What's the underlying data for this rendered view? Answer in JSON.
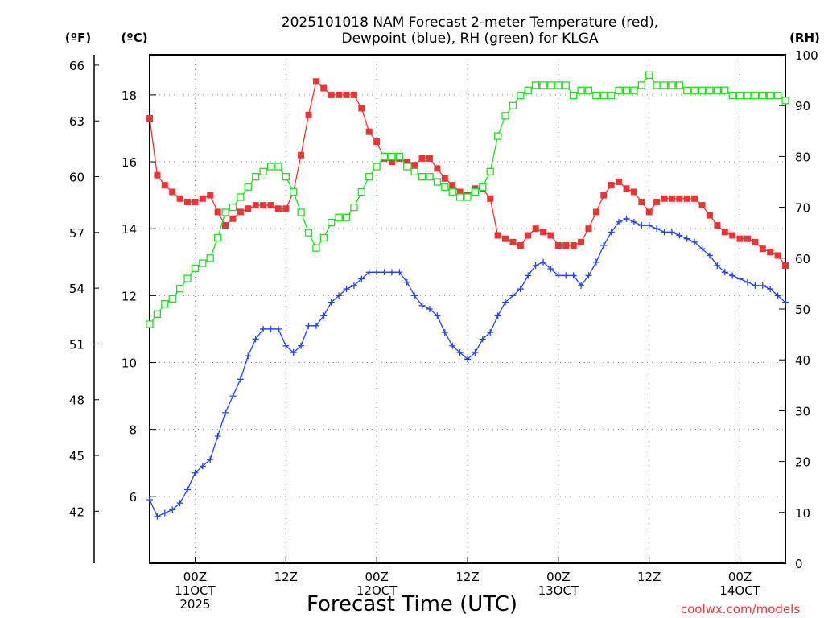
{
  "colors": {
    "temperature": "#ee3333",
    "dewpoint": "#2244ee",
    "rh": "#22dd22",
    "grid": "#888888"
  },
  "chart_data": {
    "type": "line",
    "title_line1": "2025101018 NAM Forecast 2-meter Temperature (red),",
    "title_line2": "Dewpoint (blue), RH (green) for KLGA",
    "xlabel": "Forecast Time (UTC)",
    "credit": "coolwx.com/models",
    "units": {
      "fahrenheit": "(ºF)",
      "celsius": "(ºC)",
      "rh": "(RH)"
    },
    "x_unit": "hours since 2025-10-10 18Z",
    "xlim": [
      0,
      84
    ],
    "ylim_c": [
      4.0,
      19.2
    ],
    "ylim_rh": [
      0,
      100
    ],
    "x_ticks": [
      {
        "x": 6,
        "lines": [
          "00Z",
          "11OCT",
          "2025"
        ]
      },
      {
        "x": 18,
        "lines": [
          "12Z",
          "",
          ""
        ]
      },
      {
        "x": 30,
        "lines": [
          "00Z",
          "12OCT",
          ""
        ]
      },
      {
        "x": 42,
        "lines": [
          "12Z",
          "",
          ""
        ]
      },
      {
        "x": 54,
        "lines": [
          "00Z",
          "13OCT",
          ""
        ]
      },
      {
        "x": 66,
        "lines": [
          "12Z",
          "",
          ""
        ]
      },
      {
        "x": 78,
        "lines": [
          "00Z",
          "14OCT",
          ""
        ]
      }
    ],
    "c_ticks": [
      6,
      8,
      10,
      12,
      14,
      16,
      18
    ],
    "f_ticks": [
      42,
      45,
      48,
      51,
      54,
      57,
      60,
      63,
      66
    ],
    "rh_ticks": [
      0,
      10,
      20,
      30,
      40,
      50,
      60,
      70,
      80,
      90,
      100
    ],
    "series": [
      {
        "name": "Temperature",
        "axis": "c",
        "marker": "filled-square",
        "color_key": "temperature",
        "values": [
          [
            0,
            17.3
          ],
          [
            1,
            15.6
          ],
          [
            2,
            15.3
          ],
          [
            3,
            15.1
          ],
          [
            4,
            14.9
          ],
          [
            5,
            14.8
          ],
          [
            6,
            14.8
          ],
          [
            7,
            14.9
          ],
          [
            8,
            15.0
          ],
          [
            9,
            14.5
          ],
          [
            10,
            14.1
          ],
          [
            11,
            14.3
          ],
          [
            12,
            14.5
          ],
          [
            13,
            14.6
          ],
          [
            14,
            14.7
          ],
          [
            15,
            14.7
          ],
          [
            16,
            14.7
          ],
          [
            17,
            14.6
          ],
          [
            18,
            14.6
          ],
          [
            19,
            15.1
          ],
          [
            20,
            16.2
          ],
          [
            21,
            17.4
          ],
          [
            22,
            18.4
          ],
          [
            23,
            18.2
          ],
          [
            24,
            18.0
          ],
          [
            25,
            18.0
          ],
          [
            26,
            18.0
          ],
          [
            27,
            18.0
          ],
          [
            28,
            17.6
          ],
          [
            29,
            16.9
          ],
          [
            30,
            16.6
          ],
          [
            31,
            16.1
          ],
          [
            32,
            16.0
          ],
          [
            33,
            16.1
          ],
          [
            34,
            16.0
          ],
          [
            35,
            15.9
          ],
          [
            36,
            16.1
          ],
          [
            37,
            16.1
          ],
          [
            38,
            15.8
          ],
          [
            39,
            15.5
          ],
          [
            40,
            15.3
          ],
          [
            41,
            15.1
          ],
          [
            42,
            15.0
          ],
          [
            43,
            15.2
          ],
          [
            44,
            15.2
          ],
          [
            45,
            14.9
          ],
          [
            46,
            13.8
          ],
          [
            47,
            13.7
          ],
          [
            48,
            13.6
          ],
          [
            49,
            13.5
          ],
          [
            50,
            13.8
          ],
          [
            51,
            14.0
          ],
          [
            52,
            13.9
          ],
          [
            53,
            13.8
          ],
          [
            54,
            13.5
          ],
          [
            55,
            13.5
          ],
          [
            56,
            13.5
          ],
          [
            57,
            13.6
          ],
          [
            58,
            14.0
          ],
          [
            59,
            14.5
          ],
          [
            60,
            15.0
          ],
          [
            61,
            15.3
          ],
          [
            62,
            15.4
          ],
          [
            63,
            15.2
          ],
          [
            64,
            15.1
          ],
          [
            65,
            14.8
          ],
          [
            66,
            14.5
          ],
          [
            67,
            14.8
          ],
          [
            68,
            14.9
          ],
          [
            69,
            14.9
          ],
          [
            70,
            14.9
          ],
          [
            71,
            14.9
          ],
          [
            72,
            14.9
          ],
          [
            73,
            14.7
          ],
          [
            74,
            14.4
          ],
          [
            75,
            14.1
          ],
          [
            76,
            13.9
          ],
          [
            77,
            13.8
          ],
          [
            78,
            13.7
          ],
          [
            79,
            13.7
          ],
          [
            80,
            13.6
          ],
          [
            81,
            13.4
          ],
          [
            82,
            13.3
          ],
          [
            83,
            13.2
          ],
          [
            84,
            12.9
          ]
        ]
      },
      {
        "name": "Dewpoint",
        "axis": "c",
        "marker": "plus",
        "color_key": "dewpoint",
        "values": [
          [
            0,
            5.9
          ],
          [
            1,
            5.4
          ],
          [
            2,
            5.5
          ],
          [
            3,
            5.6
          ],
          [
            4,
            5.8
          ],
          [
            5,
            6.2
          ],
          [
            6,
            6.7
          ],
          [
            7,
            6.9
          ],
          [
            8,
            7.1
          ],
          [
            9,
            7.8
          ],
          [
            10,
            8.5
          ],
          [
            11,
            9.0
          ],
          [
            12,
            9.5
          ],
          [
            13,
            10.2
          ],
          [
            14,
            10.7
          ],
          [
            15,
            11.0
          ],
          [
            16,
            11.0
          ],
          [
            17,
            11.0
          ],
          [
            18,
            10.5
          ],
          [
            19,
            10.3
          ],
          [
            20,
            10.5
          ],
          [
            21,
            11.1
          ],
          [
            22,
            11.1
          ],
          [
            23,
            11.4
          ],
          [
            24,
            11.8
          ],
          [
            25,
            12.0
          ],
          [
            26,
            12.2
          ],
          [
            27,
            12.3
          ],
          [
            28,
            12.5
          ],
          [
            29,
            12.7
          ],
          [
            30,
            12.7
          ],
          [
            31,
            12.7
          ],
          [
            32,
            12.7
          ],
          [
            33,
            12.7
          ],
          [
            34,
            12.4
          ],
          [
            35,
            12.0
          ],
          [
            36,
            11.7
          ],
          [
            37,
            11.6
          ],
          [
            38,
            11.4
          ],
          [
            39,
            10.9
          ],
          [
            40,
            10.5
          ],
          [
            41,
            10.3
          ],
          [
            42,
            10.1
          ],
          [
            43,
            10.3
          ],
          [
            44,
            10.7
          ],
          [
            45,
            10.9
          ],
          [
            46,
            11.4
          ],
          [
            47,
            11.8
          ],
          [
            48,
            12.0
          ],
          [
            49,
            12.2
          ],
          [
            50,
            12.6
          ],
          [
            51,
            12.9
          ],
          [
            52,
            13.0
          ],
          [
            53,
            12.8
          ],
          [
            54,
            12.6
          ],
          [
            55,
            12.6
          ],
          [
            56,
            12.6
          ],
          [
            57,
            12.3
          ],
          [
            58,
            12.6
          ],
          [
            59,
            13.0
          ],
          [
            60,
            13.5
          ],
          [
            61,
            13.9
          ],
          [
            62,
            14.2
          ],
          [
            63,
            14.3
          ],
          [
            64,
            14.2
          ],
          [
            65,
            14.1
          ],
          [
            66,
            14.1
          ],
          [
            67,
            14.0
          ],
          [
            68,
            13.9
          ],
          [
            69,
            13.9
          ],
          [
            70,
            13.8
          ],
          [
            71,
            13.7
          ],
          [
            72,
            13.6
          ],
          [
            73,
            13.4
          ],
          [
            74,
            13.2
          ],
          [
            75,
            12.9
          ],
          [
            76,
            12.7
          ],
          [
            77,
            12.6
          ],
          [
            78,
            12.5
          ],
          [
            79,
            12.4
          ],
          [
            80,
            12.3
          ],
          [
            81,
            12.3
          ],
          [
            82,
            12.2
          ],
          [
            83,
            12.0
          ],
          [
            84,
            11.8
          ]
        ]
      },
      {
        "name": "RH",
        "axis": "rh",
        "marker": "open-square",
        "color_key": "rh",
        "values": [
          [
            0,
            47
          ],
          [
            1,
            49
          ],
          [
            2,
            51
          ],
          [
            3,
            52
          ],
          [
            4,
            54
          ],
          [
            5,
            56
          ],
          [
            6,
            58
          ],
          [
            7,
            59
          ],
          [
            8,
            60
          ],
          [
            9,
            64
          ],
          [
            10,
            69
          ],
          [
            11,
            70
          ],
          [
            12,
            72
          ],
          [
            13,
            74
          ],
          [
            14,
            76
          ],
          [
            15,
            77
          ],
          [
            16,
            78
          ],
          [
            17,
            78
          ],
          [
            18,
            76
          ],
          [
            19,
            73
          ],
          [
            20,
            69
          ],
          [
            21,
            65
          ],
          [
            22,
            62
          ],
          [
            23,
            64
          ],
          [
            24,
            67
          ],
          [
            25,
            68
          ],
          [
            26,
            68
          ],
          [
            27,
            70
          ],
          [
            28,
            73
          ],
          [
            29,
            76
          ],
          [
            30,
            78
          ],
          [
            31,
            80
          ],
          [
            32,
            80
          ],
          [
            33,
            80
          ],
          [
            34,
            78
          ],
          [
            35,
            77
          ],
          [
            36,
            76
          ],
          [
            37,
            76
          ],
          [
            38,
            75
          ],
          [
            39,
            74
          ],
          [
            40,
            73
          ],
          [
            41,
            72
          ],
          [
            42,
            72
          ],
          [
            43,
            73
          ],
          [
            44,
            74
          ],
          [
            45,
            77
          ],
          [
            46,
            84
          ],
          [
            47,
            88
          ],
          [
            48,
            90
          ],
          [
            49,
            92
          ],
          [
            50,
            93
          ],
          [
            51,
            94
          ],
          [
            52,
            94
          ],
          [
            53,
            94
          ],
          [
            54,
            94
          ],
          [
            55,
            94
          ],
          [
            56,
            92
          ],
          [
            57,
            93
          ],
          [
            58,
            93
          ],
          [
            59,
            92
          ],
          [
            60,
            92
          ],
          [
            61,
            92
          ],
          [
            62,
            93
          ],
          [
            63,
            93
          ],
          [
            64,
            93
          ],
          [
            65,
            94
          ],
          [
            66,
            96
          ],
          [
            67,
            94
          ],
          [
            68,
            94
          ],
          [
            69,
            94
          ],
          [
            70,
            94
          ],
          [
            71,
            93
          ],
          [
            72,
            93
          ],
          [
            73,
            93
          ],
          [
            74,
            93
          ],
          [
            75,
            93
          ],
          [
            76,
            93
          ],
          [
            77,
            92
          ],
          [
            78,
            92
          ],
          [
            79,
            92
          ],
          [
            80,
            92
          ],
          [
            81,
            92
          ],
          [
            82,
            92
          ],
          [
            83,
            92
          ],
          [
            84,
            91
          ]
        ]
      }
    ]
  }
}
